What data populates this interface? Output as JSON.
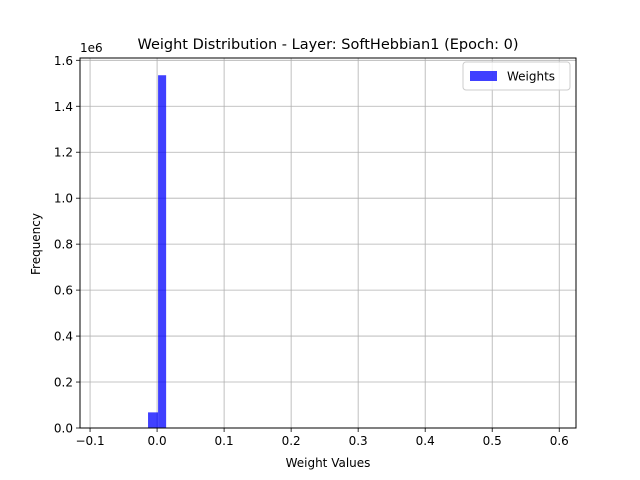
{
  "chart_data": {
    "type": "bar",
    "title": "Weight Distribution - Layer: SoftHebbian1 (Epoch: 0)",
    "xlabel": "Weight Values",
    "ylabel": "Frequency",
    "y_offset_label": "1e6",
    "xlim": [
      -0.115,
      0.625
    ],
    "ylim": [
      0,
      1.61
    ],
    "xticks": [
      -0.1,
      0.0,
      0.1,
      0.2,
      0.3,
      0.4,
      0.5,
      0.6
    ],
    "xtick_labels": [
      "−0.1",
      "0.0",
      "0.1",
      "0.2",
      "0.3",
      "0.4",
      "0.5",
      "0.6"
    ],
    "yticks": [
      0.0,
      0.2,
      0.4,
      0.6,
      0.8,
      1.0,
      1.2,
      1.4,
      1.6
    ],
    "ytick_labels": [
      "0.0",
      "0.2",
      "0.4",
      "0.6",
      "0.8",
      "1.0",
      "1.2",
      "1.4",
      "1.6"
    ],
    "grid": true,
    "legend_position": "top-right",
    "series": [
      {
        "name": "Weights",
        "color": "#0000ff",
        "opacity": 0.75,
        "bins": [
          {
            "x0": -0.0135,
            "x1": 0.0015,
            "value": 0.068
          },
          {
            "x0": 0.0015,
            "x1": 0.0135,
            "value": 1.535
          }
        ]
      }
    ]
  }
}
